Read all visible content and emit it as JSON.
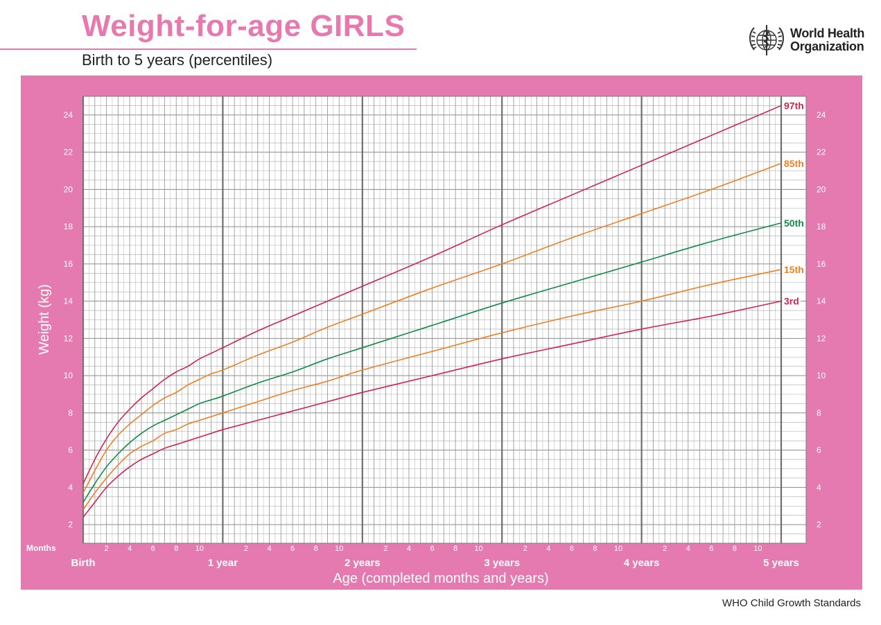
{
  "header": {
    "title": "Weight-for-age GIRLS",
    "subtitle": "Birth to 5 years (percentiles)",
    "logo_line1": "World Health",
    "logo_line2": "Organization"
  },
  "footer": {
    "credit": "WHO Child Growth Standards"
  },
  "colors": {
    "title_pink": "#e879ae",
    "panel_pink": "#e57ab0",
    "p3_p97": "#d0234f",
    "p15_p85": "#ec8022",
    "p50": "#0f8a48"
  },
  "chart_data": {
    "type": "line",
    "title": "Weight-for-age GIRLS",
    "subtitle": "Birth to 5 years (percentiles)",
    "xlabel": "Age (completed months and years)",
    "ylabel": "Weight (kg)",
    "months_label": "Months",
    "xlim": [
      0,
      60
    ],
    "ylim": [
      1,
      25
    ],
    "grid": true,
    "y_ticks": [
      2,
      4,
      6,
      8,
      10,
      12,
      14,
      16,
      18,
      20,
      22,
      24
    ],
    "month_ticks": [
      2,
      4,
      6,
      8,
      10
    ],
    "year_labels": [
      {
        "month": 0,
        "label": "Birth"
      },
      {
        "month": 12,
        "label": "1 year"
      },
      {
        "month": 24,
        "label": "2 years"
      },
      {
        "month": 36,
        "label": "3 years"
      },
      {
        "month": 48,
        "label": "4 years"
      },
      {
        "month": 60,
        "label": "5 years"
      }
    ],
    "x": [
      0,
      1,
      2,
      3,
      4,
      5,
      6,
      7,
      8,
      9,
      10,
      11,
      12,
      15,
      18,
      21,
      24,
      30,
      36,
      42,
      48,
      54,
      60
    ],
    "series": [
      {
        "name": "97th",
        "color": "#d0234f",
        "values": [
          4.2,
          5.5,
          6.6,
          7.5,
          8.2,
          8.8,
          9.3,
          9.8,
          10.2,
          10.5,
          10.9,
          11.2,
          11.5,
          12.4,
          13.2,
          14.0,
          14.8,
          16.4,
          18.1,
          19.7,
          21.3,
          22.9,
          24.5
        ]
      },
      {
        "name": "85th",
        "color": "#ec8022",
        "values": [
          3.7,
          4.9,
          6.0,
          6.8,
          7.4,
          7.9,
          8.4,
          8.8,
          9.1,
          9.5,
          9.8,
          10.1,
          10.3,
          11.1,
          11.8,
          12.6,
          13.3,
          14.7,
          16.0,
          17.4,
          18.7,
          20.0,
          21.4
        ]
      },
      {
        "name": "50th",
        "color": "#0f8a48",
        "values": [
          3.2,
          4.2,
          5.1,
          5.8,
          6.4,
          6.9,
          7.3,
          7.6,
          7.9,
          8.2,
          8.5,
          8.7,
          8.9,
          9.6,
          10.2,
          10.9,
          11.5,
          12.7,
          13.9,
          15.0,
          16.1,
          17.2,
          18.2
        ]
      },
      {
        "name": "15th",
        "color": "#ec8022",
        "values": [
          2.8,
          3.7,
          4.5,
          5.2,
          5.8,
          6.2,
          6.5,
          6.9,
          7.1,
          7.4,
          7.6,
          7.8,
          8.0,
          8.6,
          9.2,
          9.7,
          10.3,
          11.3,
          12.3,
          13.2,
          14.0,
          14.9,
          15.7
        ]
      },
      {
        "name": "3rd",
        "color": "#d0234f",
        "values": [
          2.4,
          3.2,
          4.0,
          4.6,
          5.1,
          5.5,
          5.8,
          6.1,
          6.3,
          6.5,
          6.7,
          6.9,
          7.1,
          7.6,
          8.1,
          8.6,
          9.1,
          10.0,
          10.9,
          11.7,
          12.5,
          13.2,
          14.0
        ]
      }
    ]
  }
}
